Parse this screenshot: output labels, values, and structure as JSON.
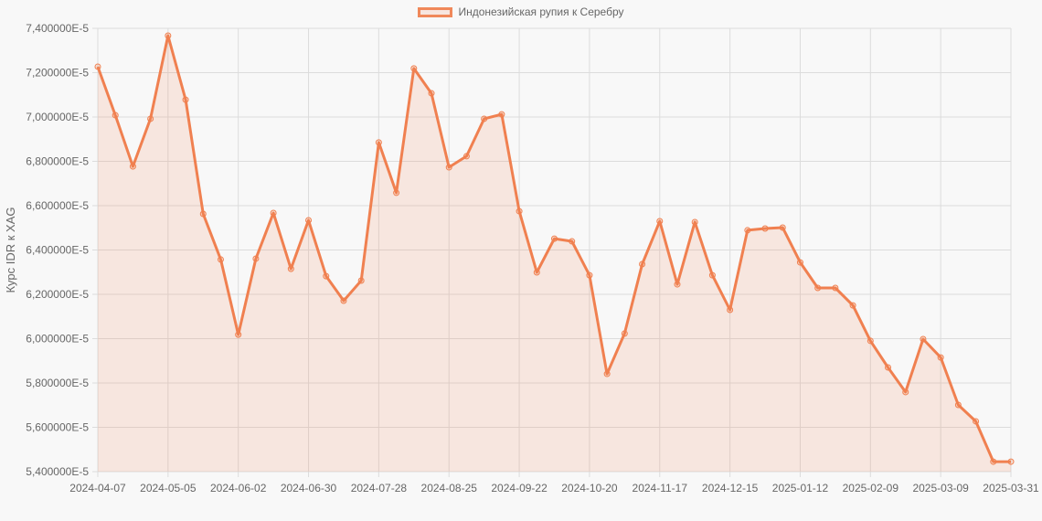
{
  "legend": {
    "label": "Индонезийская рупия к Серебру",
    "color": "#f08050"
  },
  "chart_data": {
    "type": "line",
    "title": "",
    "xlabel": "",
    "ylabel": "Курс IDR к XAG",
    "ylim": [
      5.4e-05,
      7.4e-05
    ],
    "yticks": [
      "7,400000E-5",
      "7,200000E-5",
      "7,000000E-5",
      "6,800000E-5",
      "6,600000E-5",
      "6,400000E-5",
      "6,200000E-5",
      "6,000000E-5",
      "5,800000E-5",
      "5,600000E-5",
      "5,400000E-5"
    ],
    "xtick_labels": [
      "2024-04-07",
      "2024-05-05",
      "2024-06-02",
      "2024-06-30",
      "2024-07-28",
      "2024-08-25",
      "2024-09-22",
      "2024-10-20",
      "2024-11-17",
      "2024-12-15",
      "2025-01-12",
      "2025-02-09",
      "2025-03-09",
      "2025-03-31"
    ],
    "grid": true,
    "legend_position": "top",
    "series": [
      {
        "name": "Индонезийская рупия к Серебру",
        "color": "#f08050",
        "fill": "rgba(240,128,80,0.15)",
        "values_e5": [
          7.227,
          7.008,
          6.777,
          6.992,
          7.367,
          7.078,
          6.563,
          6.357,
          6.018,
          6.361,
          6.567,
          6.315,
          6.534,
          6.282,
          6.171,
          6.262,
          6.885,
          6.658,
          7.219,
          7.107,
          6.773,
          6.823,
          6.992,
          7.012,
          6.575,
          6.299,
          6.451,
          6.439,
          6.286,
          5.841,
          6.023,
          6.336,
          6.53,
          6.245,
          6.526,
          6.286,
          6.13,
          6.489,
          6.497,
          6.501,
          6.344,
          6.229,
          6.229,
          6.15,
          5.99,
          5.87,
          5.759,
          5.998,
          5.915,
          5.701,
          5.627,
          5.445,
          5.445
        ]
      }
    ]
  }
}
